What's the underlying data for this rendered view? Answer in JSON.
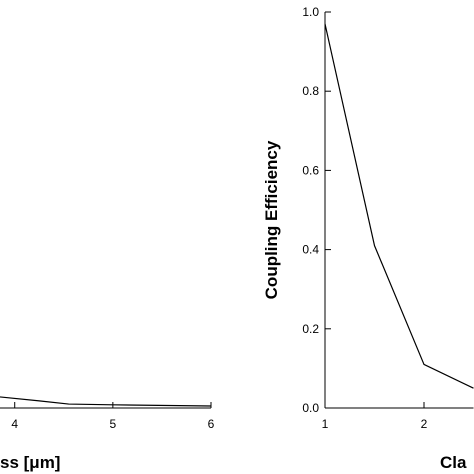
{
  "chart_data": [
    {
      "type": "line",
      "x_label": "ss [μm]",
      "x": [
        3.85,
        4.25,
        4.55,
        5,
        6
      ],
      "series": [
        {
          "color": "#000000",
          "values": [
            0.028,
            0.018,
            0.01,
            0.008,
            0.005
          ]
        }
      ],
      "xlim": [
        3.85,
        6
      ],
      "xticks": [
        4,
        5,
        6
      ],
      "ylim": [
        0,
        1
      ]
    },
    {
      "type": "line",
      "x_label": "Cla",
      "y_label": "Coupling Efficiency",
      "x": [
        1,
        1.5,
        2,
        2.5
      ],
      "series": [
        {
          "color": "#000000",
          "values": [
            0.97,
            0.41,
            0.11,
            0.05
          ]
        }
      ],
      "xlim": [
        1,
        2.5
      ],
      "xticks": [
        1,
        2
      ],
      "ylim": [
        0,
        1
      ],
      "yticks": [
        {
          "value": 0,
          "label": "0.0"
        },
        {
          "value": 0.2,
          "label": "0.2"
        },
        {
          "value": 0.4,
          "label": "0.4"
        },
        {
          "value": 0.6,
          "label": "0.6"
        },
        {
          "value": 0.8,
          "label": "0.8"
        },
        {
          "value": 1,
          "label": "1.0"
        }
      ]
    }
  ]
}
